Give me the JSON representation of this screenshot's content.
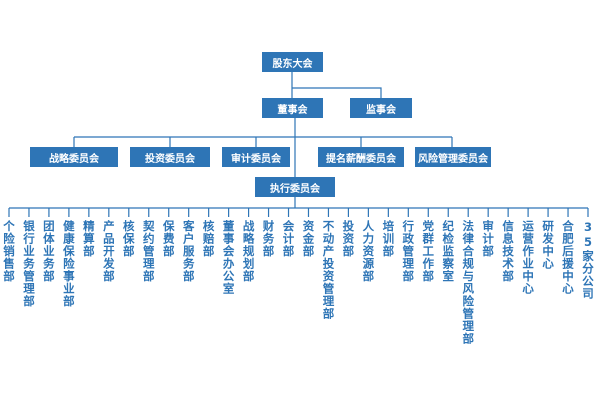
{
  "nodes": [
    {
      "label": "股东大会"
    },
    {
      "label": "董事会"
    },
    {
      "label": "监事会"
    },
    {
      "label": "战略委员会"
    },
    {
      "label": "投资委员会"
    },
    {
      "label": "审计委员会"
    },
    {
      "label": "提名薪酬委员会"
    },
    {
      "label": "风险管理委员会"
    },
    {
      "label": "执行委员会"
    }
  ],
  "departments": [
    "个险销售部",
    "银行业务管理部",
    "团体业务部",
    "健康保险事业部",
    "精算部",
    "产品开发部",
    "核保部",
    "契约管理部",
    "保费部",
    "客户服务部",
    "核赔部",
    "董事会办公室",
    "战略规划部",
    "财务部",
    "会计部",
    "资金部",
    "不动产投资管理部",
    "投资部",
    "人力资源部",
    "培训部",
    "行政管理部",
    "党群工作部",
    "纪检监察室",
    "法律合规与风险管理部",
    "审计部",
    "信息技术部",
    "运营作业中心",
    "研发中心",
    "合肥后援中心",
    "35家分公司"
  ]
}
